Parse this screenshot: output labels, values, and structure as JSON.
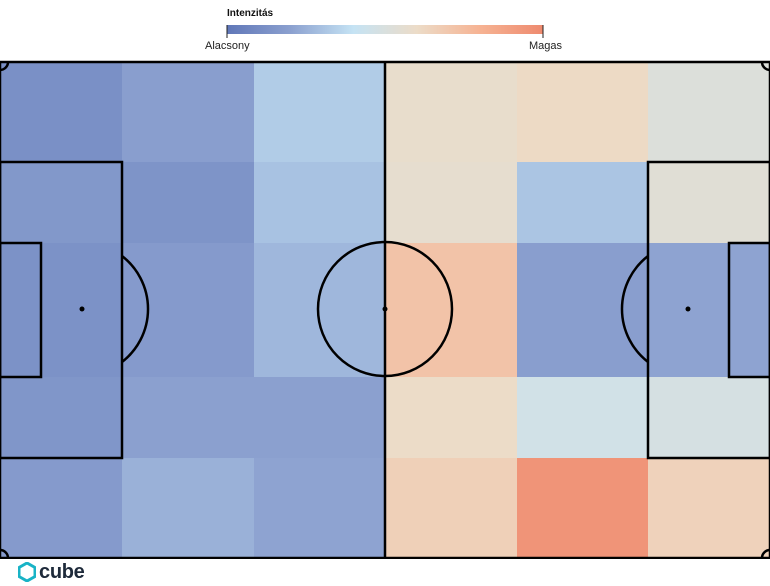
{
  "legend": {
    "title": "Intenzitás",
    "low_label": "Alacsony",
    "high_label": "Magas",
    "scale_colors": [
      "#6077b8",
      "#8ba0cf",
      "#c5e3f4",
      "#ecdcc8",
      "#f6b393",
      "#ee8a6f"
    ]
  },
  "brand": {
    "name": "cube",
    "color": "#19b3c6"
  },
  "chart_data": {
    "type": "heatmap",
    "title": "",
    "xlabel": "",
    "ylabel": "",
    "value_range": [
      0,
      1
    ],
    "columns": 6,
    "rows": 5,
    "values": [
      [
        0.12,
        0.19,
        0.33,
        0.58,
        0.61,
        0.52
      ],
      [
        0.16,
        0.14,
        0.3,
        0.57,
        0.31,
        0.54
      ],
      [
        0.13,
        0.17,
        0.27,
        0.72,
        0.19,
        0.21
      ],
      [
        0.15,
        0.2,
        0.2,
        0.6,
        0.46,
        0.48
      ],
      [
        0.17,
        0.25,
        0.21,
        0.66,
        0.95,
        0.65
      ]
    ]
  }
}
